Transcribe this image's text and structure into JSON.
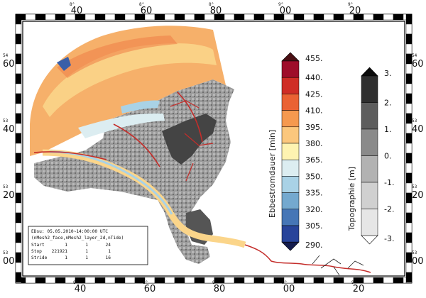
{
  "map": {
    "top_ticks": [
      "40",
      "60",
      "80",
      "00",
      "20"
    ],
    "bottom_ticks": [
      "40",
      "60",
      "80",
      "00",
      "20"
    ],
    "left_ticks": [
      "60",
      "40",
      "20",
      "00"
    ],
    "right_ticks": [
      "60",
      "40",
      "20",
      "00"
    ],
    "small_tick_labels": {
      "top": [
        "8°",
        "8°",
        "8°",
        "9°",
        "9°"
      ],
      "bottom": [
        "8°",
        "8°",
        "8°",
        "9°",
        "9°"
      ],
      "left": [
        "54",
        "53",
        "53",
        "53"
      ],
      "right": [
        "54",
        "53",
        "53",
        "53"
      ]
    }
  },
  "info_box": {
    "line1": "EDsu: 05.05.2010~14:00:00 UTC",
    "line2": "(nMesh2_face,nMesh2_layer_2d,nTide)",
    "row_start_label": "Start",
    "row_start_values": [
      "1",
      "1",
      "24"
    ],
    "row_stop_label": "Stop",
    "row_stop_values": [
      "221921",
      "1",
      "1"
    ],
    "row_stride_label": "Stride",
    "row_stride_values": [
      "1",
      "1",
      "16"
    ]
  },
  "colorbar_ebb": {
    "title": "Ebbestromdauer [min]",
    "labels": [
      "455.",
      "440.",
      "425.",
      "410.",
      "395.",
      "380.",
      "365.",
      "350.",
      "335.",
      "320.",
      "305.",
      "290."
    ],
    "colors": [
      "#9e0d2a",
      "#cf2d26",
      "#ea6233",
      "#f5994f",
      "#fbc77d",
      "#fef3b1",
      "#dcedf1",
      "#a9d2e6",
      "#74a9cf",
      "#4676b6",
      "#28449a"
    ],
    "top_arrow_color": "#4a0f14",
    "bottom_arrow_color": "#141c4d"
  },
  "colorbar_topo": {
    "title": "Topographie [m]",
    "labels": [
      "3.",
      "2.",
      "1.",
      "0.",
      "-1.",
      "-2.",
      "-3."
    ],
    "colors": [
      "#2f2f2f",
      "#5d5d5d",
      "#8a8a8a",
      "#b2b2b2",
      "#d0d0d0",
      "#e6e6e6"
    ],
    "top_arrow_color": "#0c0c0c",
    "bottom_arrow_color": "#ffffff"
  },
  "colors": {
    "land_dark": "#3f3f3f",
    "flat_gray": "#9a9a9a",
    "sea_warm": "#f6b06a",
    "sea_yellow": "#fbd58a",
    "channel_red": "#c42d2a",
    "channel_blue": "#9fc7e1"
  }
}
